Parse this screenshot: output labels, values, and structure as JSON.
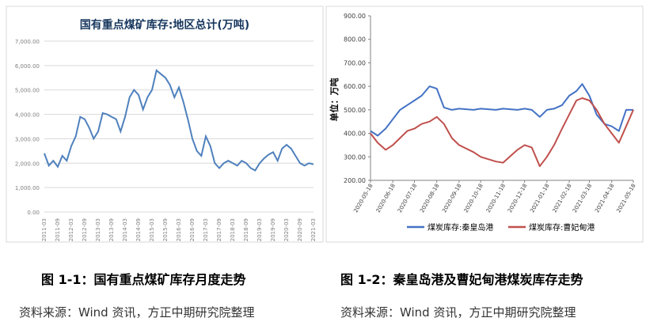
{
  "chart_data": [
    {
      "type": "line",
      "title": "国有重点煤矿库存:地区总计(万吨)",
      "ylim": [
        0,
        7000
      ],
      "y_ticks": [
        "0.00",
        "1,000.00",
        "2,000.00",
        "3,000.00",
        "4,000.00",
        "5,000.00",
        "6,000.00",
        "7,000.00"
      ],
      "x_ticks": [
        "2011-03",
        "2011-09",
        "2012-03",
        "2012-09",
        "2013-03",
        "2013-09",
        "2014-03",
        "2014-09",
        "2015-03",
        "2015-09",
        "2016-03",
        "2016-09",
        "2017-03",
        "2017-09",
        "2018-03",
        "2018-09",
        "2019-03",
        "2019-09",
        "2020-03",
        "2020-09",
        "2021-03"
      ],
      "grid": true,
      "legend": "none",
      "series": [
        {
          "color": "#4f81bd",
          "x": [
            "2011-03",
            "2011-05",
            "2011-07",
            "2011-09",
            "2011-11",
            "2012-01",
            "2012-03",
            "2012-05",
            "2012-07",
            "2012-09",
            "2012-11",
            "2013-01",
            "2013-03",
            "2013-05",
            "2013-07",
            "2013-09",
            "2013-11",
            "2014-01",
            "2014-03",
            "2014-05",
            "2014-07",
            "2014-09",
            "2014-11",
            "2015-01",
            "2015-03",
            "2015-05",
            "2015-07",
            "2015-09",
            "2015-11",
            "2016-01",
            "2016-03",
            "2016-05",
            "2016-07",
            "2016-09",
            "2016-11",
            "2017-01",
            "2017-03",
            "2017-05",
            "2017-07",
            "2017-09",
            "2017-11",
            "2018-01",
            "2018-03",
            "2018-05",
            "2018-07",
            "2018-09",
            "2018-11",
            "2019-01",
            "2019-03",
            "2019-05",
            "2019-07",
            "2019-09",
            "2019-11",
            "2020-01",
            "2020-03",
            "2020-05",
            "2020-07",
            "2020-09",
            "2020-11",
            "2021-01",
            "2021-03"
          ],
          "values": [
            2400,
            1900,
            2100,
            1850,
            2300,
            2100,
            2700,
            3100,
            3900,
            3800,
            3450,
            3000,
            3300,
            4050,
            4000,
            3900,
            3800,
            3300,
            3900,
            4700,
            5000,
            4800,
            4200,
            4700,
            5000,
            5800,
            5650,
            5500,
            5200,
            4700,
            5100,
            4500,
            3800,
            3000,
            2500,
            2300,
            3100,
            2700,
            2000,
            1800,
            2000,
            2100,
            2000,
            1900,
            2100,
            2000,
            1800,
            1700,
            2000,
            2200,
            2350,
            2450,
            2100,
            2600,
            2750,
            2600,
            2300,
            2000,
            1900,
            2000,
            1950
          ]
        }
      ],
      "caption": "图 1-1：国有重点煤矿库存月度走势",
      "source": "资料来源：Wind 资讯，方正中期研究院整理"
    },
    {
      "type": "line",
      "ylabel": "单位：万吨",
      "ylim": [
        200,
        900
      ],
      "y_ticks": [
        "200.00",
        "300.00",
        "400.00",
        "500.00",
        "600.00",
        "700.00",
        "800.00",
        "900.00"
      ],
      "x_ticks": [
        "2020-05-18",
        "2020-06-18",
        "2020-07-18",
        "2020-08-18",
        "2020-09-18",
        "2020-10-18",
        "2020-11-18",
        "2020-12-18",
        "2021-01-18",
        "2021-02-18",
        "2021-03-18",
        "2021-04-18",
        "2021-05-18"
      ],
      "grid": false,
      "legend": "bottom",
      "series": [
        {
          "name": "煤炭库存:秦皇岛港",
          "color": "#4472c4",
          "x": [
            "2020-05-18",
            "2020-05-28",
            "2020-06-08",
            "2020-06-18",
            "2020-06-28",
            "2020-07-08",
            "2020-07-18",
            "2020-07-28",
            "2020-08-08",
            "2020-08-18",
            "2020-08-28",
            "2020-09-08",
            "2020-09-18",
            "2020-10-08",
            "2020-10-18",
            "2020-11-08",
            "2020-11-18",
            "2020-12-08",
            "2020-12-18",
            "2020-12-28",
            "2021-01-08",
            "2021-01-18",
            "2021-01-28",
            "2021-02-08",
            "2021-02-18",
            "2021-02-28",
            "2021-03-08",
            "2021-03-18",
            "2021-03-28",
            "2021-04-08",
            "2021-04-18",
            "2021-04-28",
            "2021-05-08",
            "2021-05-18"
          ],
          "values": [
            410,
            390,
            420,
            460,
            500,
            520,
            540,
            560,
            600,
            590,
            510,
            500,
            505,
            500,
            505,
            500,
            505,
            500,
            505,
            500,
            470,
            500,
            505,
            520,
            560,
            580,
            610,
            560,
            480,
            440,
            430,
            410,
            500,
            500
          ]
        },
        {
          "name": "煤炭库存:曹妃甸港",
          "color": "#c0504d",
          "x": [
            "2020-05-18",
            "2020-05-28",
            "2020-06-08",
            "2020-06-18",
            "2020-06-28",
            "2020-07-08",
            "2020-07-18",
            "2020-07-28",
            "2020-08-08",
            "2020-08-18",
            "2020-08-28",
            "2020-09-08",
            "2020-09-18",
            "2020-10-08",
            "2020-10-18",
            "2020-11-08",
            "2020-11-18",
            "2020-12-08",
            "2020-12-18",
            "2020-12-28",
            "2021-01-08",
            "2021-01-18",
            "2021-01-28",
            "2021-02-08",
            "2021-02-18",
            "2021-02-28",
            "2021-03-08",
            "2021-03-18",
            "2021-03-28",
            "2021-04-08",
            "2021-04-18",
            "2021-04-28",
            "2021-05-08",
            "2021-05-18"
          ],
          "values": [
            400,
            360,
            330,
            350,
            380,
            410,
            420,
            440,
            450,
            470,
            440,
            380,
            350,
            320,
            300,
            280,
            275,
            330,
            350,
            340,
            260,
            300,
            350,
            420,
            480,
            540,
            550,
            540,
            500,
            440,
            400,
            360,
            430,
            500
          ]
        }
      ],
      "caption": "图 1-2：秦皇岛港及曹妃甸港煤炭库存走势",
      "source": "资料来源：Wind 资讯，方正中期研究院整理"
    }
  ]
}
